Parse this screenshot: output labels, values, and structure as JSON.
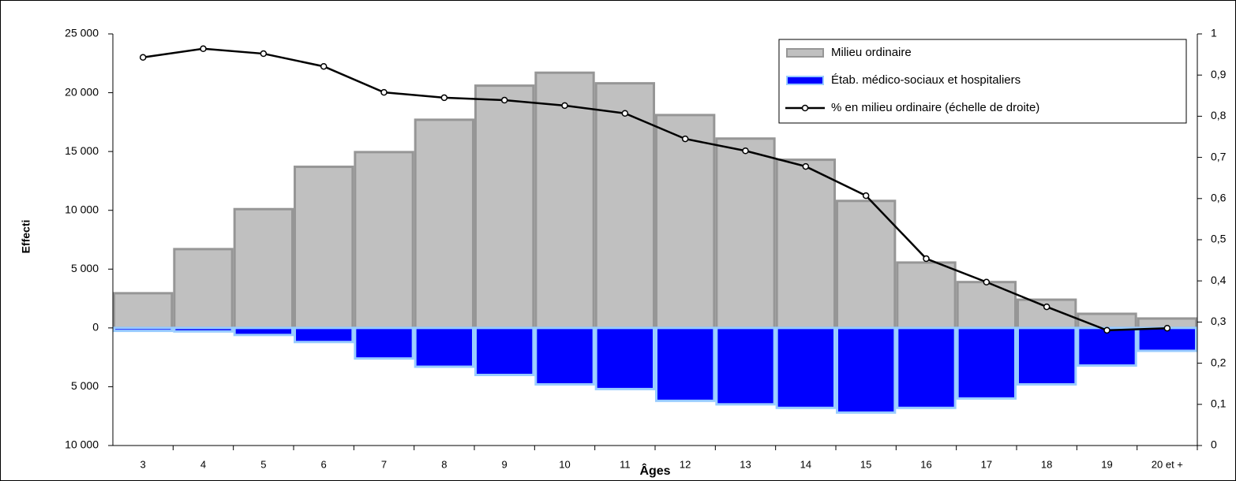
{
  "chart_data": {
    "type": "combo",
    "y_label": "Effecti",
    "x_label": "Âges",
    "categories": [
      "3",
      "4",
      "5",
      "6",
      "7",
      "8",
      "9",
      "10",
      "11",
      "12",
      "13",
      "14",
      "15",
      "16",
      "17",
      "18",
      "19",
      "20 et +"
    ],
    "series": [
      {
        "name": "Milieu ordinaire",
        "type": "bar",
        "color": "#c0c0c0",
        "stroke": "#969696",
        "values": [
          2950,
          6700,
          10100,
          13700,
          14950,
          17700,
          20600,
          21700,
          20800,
          18100,
          16100,
          14300,
          10800,
          5560,
          3900,
          2400,
          1200,
          800
        ]
      },
      {
        "name": "Étab. médico-sociaux et hospitaliers",
        "type": "bar",
        "color": "#0000ff",
        "stroke": "#99ccff",
        "values": [
          -250,
          -300,
          -600,
          -1200,
          -2600,
          -3300,
          -4000,
          -4800,
          -5200,
          -6200,
          -6500,
          -6800,
          -7200,
          -6800,
          -6000,
          -4800,
          -3200,
          -1950
        ]
      },
      {
        "name": "% en milieu ordinaire (échelle de droite)",
        "type": "line",
        "axis": "y2",
        "color": "#000000",
        "values": [
          0.943,
          0.964,
          0.952,
          0.921,
          0.858,
          0.845,
          0.839,
          0.826,
          0.807,
          0.745,
          0.716,
          0.678,
          0.607,
          0.454,
          0.397,
          0.337,
          0.28,
          0.285
        ]
      }
    ],
    "ylim": [
      -10000,
      25000
    ],
    "yticks": [
      {
        "value": 25000,
        "label": "25 000"
      },
      {
        "value": 20000,
        "label": "20 000"
      },
      {
        "value": 15000,
        "label": "15 000"
      },
      {
        "value": 10000,
        "label": "10 000"
      },
      {
        "value": 5000,
        "label": "5 000"
      },
      0,
      {
        "value": -5000,
        "label": "5 000"
      },
      {
        "value": -10000,
        "label": "10 000"
      }
    ],
    "y2lim": [
      0,
      1
    ],
    "y2ticks": [
      1,
      {
        "value": 0.9,
        "label": "0,9"
      },
      {
        "value": 0.8,
        "label": "0,8"
      },
      {
        "value": 0.7,
        "label": "0,7"
      },
      {
        "value": 0.6,
        "label": "0,6"
      },
      {
        "value": 0.5,
        "label": "0,5"
      },
      {
        "value": 0.4,
        "label": "0,4"
      },
      {
        "value": 0.3,
        "label": "0,3"
      },
      {
        "value": 0.2,
        "label": "0,2"
      },
      {
        "value": 0.1,
        "label": "0,1"
      },
      0
    ],
    "legend": "top-right"
  }
}
